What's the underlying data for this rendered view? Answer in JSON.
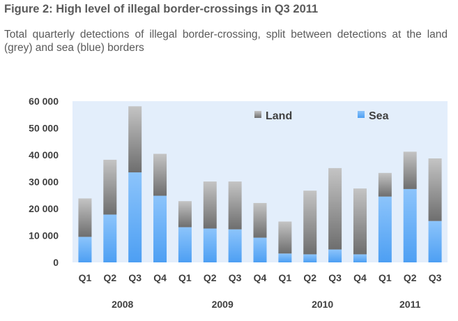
{
  "title": "Figure 2: High level of illegal border-crossings in Q3 2011",
  "subtitle": "Total quarterly detections of illegal border-crossing, split between detections at the land (grey) and sea (blue) borders",
  "chart_data": {
    "type": "bar",
    "stacked": true,
    "categories": [
      "Q1",
      "Q2",
      "Q3",
      "Q4",
      "Q1",
      "Q2",
      "Q3",
      "Q4",
      "Q1",
      "Q2",
      "Q3",
      "Q4",
      "Q1",
      "Q2",
      "Q3"
    ],
    "year_groups": [
      {
        "label": "2008",
        "start": 0,
        "end": 3
      },
      {
        "label": "2009",
        "start": 4,
        "end": 7
      },
      {
        "label": "2010",
        "start": 8,
        "end": 11
      },
      {
        "label": "2011",
        "start": 12,
        "end": 14
      }
    ],
    "series": [
      {
        "name": "Sea",
        "color": "#5aa9f5",
        "values": [
          9500,
          17800,
          33500,
          24800,
          13100,
          12600,
          12300,
          9200,
          3300,
          3000,
          4800,
          3000,
          24500,
          27300,
          15400
        ]
      },
      {
        "name": "Land",
        "color": "#8c8c8c",
        "values": [
          14300,
          20400,
          24600,
          15600,
          9700,
          17500,
          17800,
          12900,
          11900,
          23700,
          30300,
          24500,
          8800,
          13900,
          23300
        ]
      }
    ],
    "y_ticks": [
      "60 000",
      "50 000",
      "40 000",
      "30 000",
      "20 000",
      "10 000",
      "0"
    ],
    "ylim": [
      0,
      60000
    ],
    "legend": [
      "Land",
      "Sea"
    ],
    "legend_position": "top-right",
    "grid": false,
    "plot_background": "#e3eefb"
  }
}
